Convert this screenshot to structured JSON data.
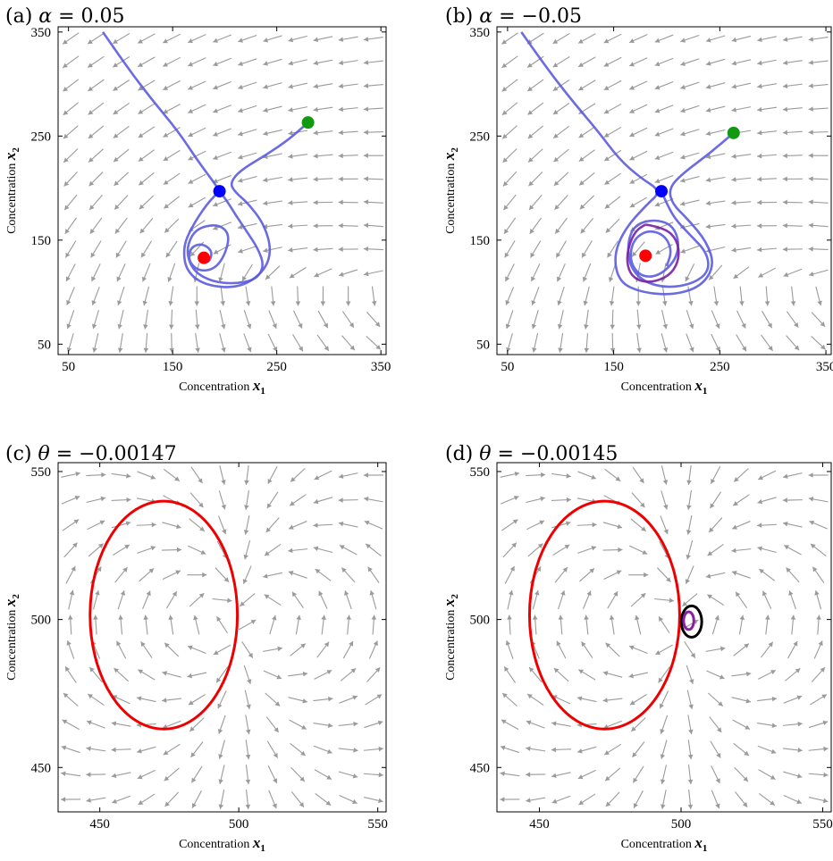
{
  "chart_data": [
    {
      "type": "line",
      "panel": "(a)",
      "title_param": "α",
      "title_value": "0.05",
      "xlabel": "Concentration",
      "xvar": "x",
      "xsub": "1",
      "ylabel": "Concentration",
      "yvar": "x",
      "ysub": "2",
      "xlim": [
        40,
        355
      ],
      "ylim": [
        40,
        355
      ],
      "xticks": [
        50,
        150,
        250,
        350
      ],
      "yticks": [
        50,
        150,
        250,
        350
      ],
      "field": {
        "kind": "spiral_saddle",
        "focus": [
          180,
          133
        ],
        "saddle": [
          195,
          197
        ],
        "node": [
          280,
          263
        ]
      },
      "series": [
        {
          "color": "#5b5bdf",
          "points": [
            [
              83,
              350
            ],
            [
              105,
              318
            ],
            [
              130,
              285
            ],
            [
              155,
              255
            ],
            [
              175,
              225
            ],
            [
              190,
              205
            ],
            [
              195,
              197
            ],
            [
              183,
              185
            ],
            [
              168,
              162
            ],
            [
              160,
              143
            ],
            [
              163,
              120
            ],
            [
              182,
              106
            ],
            [
              215,
              104
            ],
            [
              238,
              120
            ],
            [
              245,
              140
            ],
            [
              238,
              165
            ],
            [
              222,
              186
            ],
            [
              210,
              196
            ],
            [
              205,
              205
            ],
            [
              215,
              217
            ],
            [
              240,
              232
            ],
            [
              262,
              247
            ],
            [
              280,
              263
            ]
          ]
        },
        {
          "color": "#5b5bdf",
          "points": [
            [
              195,
              197
            ],
            [
              202,
              188
            ],
            [
              210,
              175
            ],
            [
              220,
              160
            ],
            [
              232,
              142
            ],
            [
              238,
              125
            ],
            [
              230,
              112
            ],
            [
              210,
              108
            ],
            [
              188,
              110
            ],
            [
              170,
              120
            ],
            [
              163,
              138
            ],
            [
              168,
              155
            ],
            [
              178,
              163
            ],
            [
              195,
              165
            ],
            [
              205,
              155
            ],
            [
              200,
              135
            ],
            [
              190,
              122
            ],
            [
              175,
              120
            ],
            [
              165,
              130
            ],
            [
              167,
              143
            ],
            [
              178,
              147
            ],
            [
              188,
              140
            ],
            [
              186,
              130
            ],
            [
              180,
              128
            ]
          ]
        }
      ],
      "points": [
        {
          "x": 180,
          "y": 133,
          "color": "#ff0000"
        },
        {
          "x": 195,
          "y": 197,
          "color": "#0000ff"
        },
        {
          "x": 280,
          "y": 263,
          "color": "#119a11"
        }
      ]
    },
    {
      "type": "line",
      "panel": "(b)",
      "title_param": "α",
      "title_value": "−0.05",
      "xlabel": "Concentration",
      "xvar": "x",
      "xsub": "1",
      "ylabel": "Concentration",
      "yvar": "x",
      "ysub": "2",
      "xlim": [
        40,
        355
      ],
      "ylim": [
        40,
        355
      ],
      "xticks": [
        50,
        150,
        250,
        350
      ],
      "yticks": [
        50,
        150,
        250,
        350
      ],
      "field": {
        "kind": "spiral_saddle",
        "focus": [
          180,
          135
        ],
        "saddle": [
          195,
          197
        ],
        "node": [
          263,
          253
        ]
      },
      "series": [
        {
          "color": "#5b5bdf",
          "points": [
            [
              63,
              350
            ],
            [
              85,
              318
            ],
            [
              110,
              285
            ],
            [
              135,
              255
            ],
            [
              155,
              228
            ],
            [
              175,
              210
            ],
            [
              195,
              197
            ],
            [
              180,
              183
            ],
            [
              160,
              160
            ],
            [
              150,
              135
            ],
            [
              155,
              110
            ],
            [
              175,
              100
            ],
            [
              205,
              97
            ],
            [
              232,
              105
            ],
            [
              245,
              125
            ],
            [
              238,
              148
            ],
            [
              220,
              170
            ],
            [
              205,
              185
            ],
            [
              202,
              200
            ],
            [
              215,
              214
            ],
            [
              240,
              233
            ],
            [
              263,
              253
            ]
          ]
        },
        {
          "color": "#5b5bdf",
          "points": [
            [
              195,
              197
            ],
            [
              200,
              185
            ],
            [
              208,
              170
            ],
            [
              222,
              155
            ],
            [
              238,
              138
            ],
            [
              240,
              120
            ],
            [
              225,
              108
            ],
            [
              200,
              104
            ],
            [
              178,
              110
            ],
            [
              165,
              125
            ],
            [
              163,
              148
            ],
            [
              170,
              165
            ],
            [
              188,
              170
            ],
            [
              205,
              165
            ],
            [
              212,
              148
            ],
            [
              208,
              130
            ],
            [
              192,
              115
            ],
            [
              175,
              115
            ],
            [
              165,
              130
            ],
            [
              168,
              150
            ],
            [
              182,
              160
            ],
            [
              198,
              155
            ],
            [
              205,
              140
            ],
            [
              200,
              125
            ]
          ]
        },
        {
          "color": "#7a1fa3",
          "points": [
            [
              180,
              165
            ],
            [
              198,
              162
            ],
            [
              210,
              150
            ],
            [
              212,
              133
            ],
            [
              205,
              118
            ],
            [
              190,
              110
            ],
            [
              175,
              110
            ],
            [
              165,
              118
            ],
            [
              162,
              133
            ],
            [
              166,
              150
            ],
            [
              172,
              160
            ],
            [
              180,
              165
            ]
          ]
        }
      ],
      "points": [
        {
          "x": 180,
          "y": 135,
          "color": "#ff0000"
        },
        {
          "x": 195,
          "y": 197,
          "color": "#0000ff"
        },
        {
          "x": 263,
          "y": 253,
          "color": "#119a11"
        }
      ]
    },
    {
      "type": "line",
      "panel": "(c)",
      "title_param": "θ",
      "title_value": "−0.00147",
      "xlabel": "Concentration",
      "xvar": "x",
      "xsub": "1",
      "ylabel": "Concentration",
      "yvar": "x",
      "ysub": "2",
      "xlim": [
        435,
        553
      ],
      "ylim": [
        435,
        553
      ],
      "xticks": [
        450,
        500,
        550
      ],
      "yticks": [
        450,
        500,
        550
      ],
      "field": {
        "kind": "dipole",
        "center": [
          500,
          500
        ]
      },
      "series": [
        {
          "color": "#ee0000",
          "ellipse": {
            "cx": 473,
            "cy": 501.5,
            "rx": 26.5,
            "ry": 38.5
          }
        }
      ],
      "points": []
    },
    {
      "type": "line",
      "panel": "(d)",
      "title_param": "θ",
      "title_value": "−0.00145",
      "xlabel": "Concentration",
      "xvar": "x",
      "xsub": "1",
      "ylabel": "Concentration",
      "yvar": "x",
      "ysub": "2",
      "xlim": [
        435,
        553
      ],
      "ylim": [
        435,
        553
      ],
      "xticks": [
        450,
        500,
        550
      ],
      "yticks": [
        450,
        500,
        550
      ],
      "field": {
        "kind": "dipole",
        "center": [
          500,
          500
        ]
      },
      "series": [
        {
          "color": "#ee0000",
          "ellipse": {
            "cx": 473,
            "cy": 501.5,
            "rx": 26.5,
            "ry": 38.5
          }
        },
        {
          "color": "#000000",
          "ellipse": {
            "cx": 503.7,
            "cy": 499.3,
            "rx": 3.6,
            "ry": 5.3
          }
        },
        {
          "color": "#8a1fa3",
          "ellipse": {
            "cx": 502.7,
            "cy": 499.6,
            "rx": 1.8,
            "ry": 3.0
          }
        }
      ],
      "points": []
    }
  ]
}
